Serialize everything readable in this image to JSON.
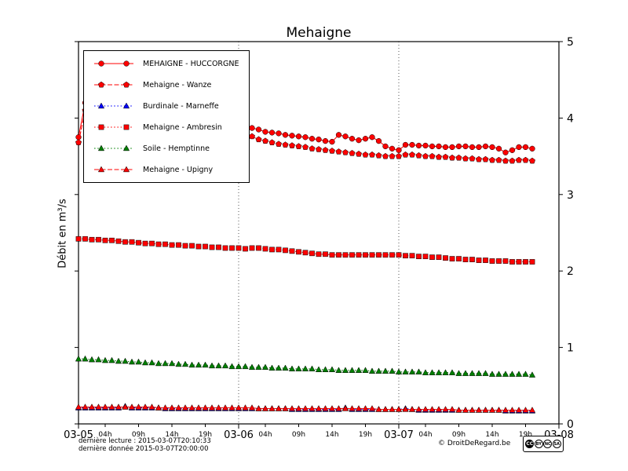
{
  "title": "Mehaigne",
  "ylabel": "Débit en m³/s",
  "footer": {
    "line1": "dernière lecture : 2015-03-07T20:10:33",
    "line2": "dernière donnée  2015-03-07T20:00:00",
    "credit": "© DroitDeRegard.be",
    "license": {
      "label": "CC",
      "by": "BY",
      "nc": "NC",
      "sa": "SA"
    }
  },
  "chart_data": {
    "type": "line",
    "title": "Mehaigne",
    "ylabel": "Débit en m³/s",
    "ylim": [
      0,
      5
    ],
    "xlim_hours": [
      0,
      72
    ],
    "grid": "vertical-dotted-at-days",
    "legend_position": "upper-left",
    "y_ticks": [
      0,
      1,
      2,
      3,
      4,
      5
    ],
    "gridline_hours": [
      24,
      48
    ],
    "x_major_ticks": [
      {
        "hour": 0,
        "label": "03-05"
      },
      {
        "hour": 24,
        "label": "03-06"
      },
      {
        "hour": 48,
        "label": "03-07"
      },
      {
        "hour": 72,
        "label": "03-08"
      }
    ],
    "x_minor_ticks": [
      {
        "hour": 4,
        "label": "04h"
      },
      {
        "hour": 9,
        "label": "09h"
      },
      {
        "hour": 14,
        "label": "14h"
      },
      {
        "hour": 19,
        "label": "19h"
      },
      {
        "hour": 28,
        "label": "04h"
      },
      {
        "hour": 33,
        "label": "09h"
      },
      {
        "hour": 38,
        "label": "14h"
      },
      {
        "hour": 43,
        "label": "19h"
      },
      {
        "hour": 52,
        "label": "04h"
      },
      {
        "hour": 57,
        "label": "09h"
      },
      {
        "hour": 62,
        "label": "14h"
      },
      {
        "hour": 67,
        "label": "19h"
      }
    ],
    "x_hours": [
      0,
      1,
      2,
      3,
      4,
      5,
      6,
      7,
      8,
      9,
      10,
      11,
      12,
      13,
      14,
      15,
      16,
      17,
      18,
      19,
      20,
      21,
      22,
      23,
      24,
      25,
      26,
      27,
      28,
      29,
      30,
      31,
      32,
      33,
      34,
      35,
      36,
      37,
      38,
      39,
      40,
      41,
      42,
      43,
      44,
      45,
      46,
      47,
      48,
      49,
      50,
      51,
      52,
      53,
      54,
      55,
      56,
      57,
      58,
      59,
      60,
      61,
      62,
      63,
      64,
      65,
      66,
      67,
      68
    ],
    "series": [
      {
        "name": "MEHAIGNE - HUCCORGNE",
        "color": "#ff0000",
        "marker": "circle",
        "line": "solid",
        "values": [
          3.75,
          4.2,
          4.05,
          3.95,
          3.9,
          3.88,
          3.86,
          3.85,
          3.84,
          3.83,
          3.82,
          3.81,
          3.8,
          3.79,
          3.78,
          3.77,
          3.76,
          3.75,
          3.75,
          3.74,
          3.74,
          3.73,
          3.73,
          3.72,
          3.88,
          3.9,
          3.87,
          3.85,
          3.82,
          3.81,
          3.8,
          3.78,
          3.77,
          3.76,
          3.75,
          3.73,
          3.72,
          3.7,
          3.69,
          3.78,
          3.76,
          3.73,
          3.71,
          3.73,
          3.75,
          3.7,
          3.63,
          3.6,
          3.58,
          3.65,
          3.65,
          3.64,
          3.64,
          3.63,
          3.63,
          3.62,
          3.62,
          3.63,
          3.63,
          3.62,
          3.62,
          3.63,
          3.62,
          3.6,
          3.55,
          3.58,
          3.62,
          3.62,
          3.6
        ]
      },
      {
        "name": "Mehaigne - Wanze",
        "color": "#ff0000",
        "marker": "pentagon",
        "line": "dashed",
        "values": [
          3.68,
          4.1,
          4.0,
          3.9,
          3.85,
          3.82,
          3.8,
          3.78,
          3.77,
          3.76,
          3.75,
          3.74,
          3.73,
          3.72,
          3.71,
          3.7,
          3.7,
          3.69,
          3.69,
          3.68,
          3.68,
          3.67,
          3.67,
          3.66,
          3.78,
          3.8,
          3.76,
          3.72,
          3.7,
          3.68,
          3.66,
          3.65,
          3.64,
          3.63,
          3.62,
          3.6,
          3.59,
          3.58,
          3.57,
          3.56,
          3.55,
          3.54,
          3.53,
          3.52,
          3.52,
          3.51,
          3.5,
          3.5,
          3.5,
          3.52,
          3.52,
          3.51,
          3.5,
          3.5,
          3.49,
          3.49,
          3.48,
          3.48,
          3.47,
          3.47,
          3.46,
          3.46,
          3.45,
          3.45,
          3.44,
          3.44,
          3.45,
          3.45,
          3.44
        ]
      },
      {
        "name": "Burdinale - Marneffe",
        "color": "#0000ff",
        "marker": "triangle",
        "line": "dotted",
        "values": [
          0.21,
          0.21,
          0.21,
          0.21,
          0.21,
          0.21,
          0.21,
          0.23,
          0.21,
          0.21,
          0.21,
          0.21,
          0.21,
          0.2,
          0.2,
          0.2,
          0.2,
          0.2,
          0.2,
          0.2,
          0.2,
          0.2,
          0.2,
          0.2,
          0.2,
          0.2,
          0.2,
          0.2,
          0.2,
          0.2,
          0.2,
          0.2,
          0.19,
          0.19,
          0.19,
          0.19,
          0.19,
          0.19,
          0.19,
          0.19,
          0.21,
          0.19,
          0.19,
          0.19,
          0.19,
          0.19,
          0.19,
          0.19,
          0.19,
          0.2,
          0.19,
          0.18,
          0.18,
          0.18,
          0.18,
          0.18,
          0.18,
          0.18,
          0.18,
          0.18,
          0.18,
          0.18,
          0.18,
          0.18,
          0.17,
          0.17,
          0.17,
          0.17,
          0.17
        ]
      },
      {
        "name": "Mehaigne - Ambresin",
        "color": "#ff0000",
        "marker": "square",
        "line": "dotted",
        "values": [
          2.42,
          2.42,
          2.41,
          2.41,
          2.4,
          2.4,
          2.39,
          2.38,
          2.38,
          2.37,
          2.36,
          2.36,
          2.35,
          2.35,
          2.34,
          2.34,
          2.33,
          2.33,
          2.32,
          2.32,
          2.31,
          2.31,
          2.3,
          2.3,
          2.3,
          2.29,
          2.3,
          2.3,
          2.29,
          2.28,
          2.28,
          2.27,
          2.26,
          2.25,
          2.24,
          2.23,
          2.22,
          2.22,
          2.21,
          2.21,
          2.21,
          2.21,
          2.21,
          2.21,
          2.21,
          2.21,
          2.21,
          2.21,
          2.21,
          2.2,
          2.2,
          2.19,
          2.19,
          2.18,
          2.18,
          2.17,
          2.16,
          2.16,
          2.15,
          2.15,
          2.14,
          2.14,
          2.13,
          2.13,
          2.13,
          2.12,
          2.12,
          2.12,
          2.12
        ]
      },
      {
        "name": "Soile - Hemptinne",
        "color": "#008000",
        "marker": "triangle",
        "line": "dotted",
        "values": [
          0.85,
          0.85,
          0.84,
          0.84,
          0.83,
          0.83,
          0.82,
          0.82,
          0.81,
          0.81,
          0.8,
          0.8,
          0.79,
          0.79,
          0.79,
          0.78,
          0.78,
          0.77,
          0.77,
          0.77,
          0.76,
          0.76,
          0.76,
          0.75,
          0.75,
          0.75,
          0.74,
          0.74,
          0.74,
          0.73,
          0.73,
          0.73,
          0.72,
          0.72,
          0.72,
          0.72,
          0.71,
          0.71,
          0.71,
          0.7,
          0.7,
          0.7,
          0.7,
          0.7,
          0.69,
          0.69,
          0.69,
          0.69,
          0.68,
          0.68,
          0.68,
          0.68,
          0.67,
          0.67,
          0.67,
          0.67,
          0.67,
          0.66,
          0.66,
          0.66,
          0.66,
          0.66,
          0.65,
          0.65,
          0.65,
          0.65,
          0.65,
          0.65,
          0.64
        ]
      },
      {
        "name": "Mehaigne - Upigny",
        "color": "#ff0000",
        "marker": "triangle",
        "line": "dashed",
        "values": [
          0.22,
          0.22,
          0.22,
          0.22,
          0.22,
          0.22,
          0.22,
          0.22,
          0.22,
          0.22,
          0.22,
          0.22,
          0.21,
          0.21,
          0.21,
          0.21,
          0.21,
          0.21,
          0.21,
          0.21,
          0.21,
          0.21,
          0.21,
          0.21,
          0.21,
          0.21,
          0.21,
          0.2,
          0.2,
          0.2,
          0.2,
          0.2,
          0.2,
          0.2,
          0.2,
          0.2,
          0.2,
          0.2,
          0.2,
          0.2,
          0.2,
          0.2,
          0.2,
          0.2,
          0.2,
          0.19,
          0.19,
          0.19,
          0.19,
          0.19,
          0.19,
          0.19,
          0.19,
          0.19,
          0.19,
          0.19,
          0.19,
          0.18,
          0.18,
          0.18,
          0.18,
          0.18,
          0.18,
          0.18,
          0.18,
          0.18,
          0.18,
          0.18,
          0.18
        ]
      }
    ]
  }
}
